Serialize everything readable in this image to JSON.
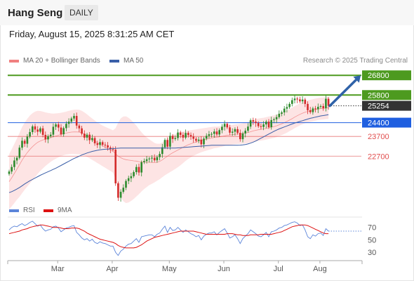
{
  "header": {
    "title": "Hang Seng",
    "period": "DAILY"
  },
  "datetime": "Friday, August 15, 2025 8:31:25 AM CET",
  "research": "Research © 2025 Trading Central",
  "colors": {
    "up": "#2c8a2c",
    "down": "#d42b2b",
    "ma50": "#3a5fa8",
    "bb": "#f08080",
    "resistance": "#4d9a1f",
    "support": "#e14d4d",
    "rsi": "#5b84d9",
    "rsi_ma": "#dd1111",
    "arrow": "#2f62a8",
    "current": "#333333",
    "ma50_level": "#1f5fe0"
  },
  "chart_data": [
    {
      "type": "candlestick",
      "legend": [
        {
          "name": "MA 20 + Bollinger Bands",
          "color": "#f08080"
        },
        {
          "name": "MA 50",
          "color": "#3a5fa8"
        }
      ],
      "x_labels": [
        "Mar",
        "Apr",
        "May",
        "Jun",
        "Jul",
        "Aug"
      ],
      "ylim": [
        20500,
        27200
      ],
      "levels": [
        {
          "value": 26800,
          "label": "26800",
          "kind": "resistance"
        },
        {
          "value": 25800,
          "label": "25800",
          "kind": "resistance"
        },
        {
          "value": 25254,
          "label": "25254",
          "kind": "current"
        },
        {
          "value": 24400,
          "label": "24400",
          "kind": "ma50"
        },
        {
          "value": 23700,
          "label": "23700",
          "kind": "support"
        },
        {
          "value": 22700,
          "label": "22700",
          "kind": "support"
        }
      ],
      "target_arrow": {
        "from": 25254,
        "to": 26800
      },
      "closes": [
        21920,
        22150,
        22480,
        22620,
        23130,
        23480,
        23330,
        23690,
        23920,
        24210,
        24050,
        23940,
        24110,
        23780,
        23550,
        23710,
        23790,
        24190,
        24310,
        24150,
        23810,
        24120,
        24340,
        24450,
        24610,
        24740,
        24250,
        24110,
        23840,
        23640,
        23790,
        23510,
        23620,
        23350,
        23270,
        23410,
        23280,
        23250,
        23140,
        23050,
        23030,
        21320,
        20590,
        20890,
        21100,
        21440,
        21580,
        21680,
        21890,
        22150,
        21870,
        22390,
        22450,
        22540,
        22580,
        22620,
        22490,
        22650,
        22810,
        23150,
        23520,
        23180,
        23730,
        23570,
        23620,
        23900,
        23780,
        23640,
        23880,
        23770,
        23690,
        23580,
        23480,
        23540,
        23300,
        23590,
        23730,
        23810,
        23830,
        23950,
        23800,
        24020,
        24190,
        24340,
        24160,
        23890,
        23940,
        24070,
        23880,
        23560,
        23850,
        23990,
        24200,
        24520,
        24450,
        24380,
        24220,
        24180,
        24310,
        24450,
        24170,
        24530,
        24570,
        24680,
        24850,
        24920,
        25110,
        25190,
        25350,
        25540,
        25620,
        25580,
        25480,
        25570,
        25350,
        25030,
        24930,
        25120,
        25080,
        25200,
        25240,
        25130,
        25610,
        25254
      ],
      "ma20": [
        21400,
        21600,
        21820,
        22040,
        22260,
        22500,
        22700,
        22880,
        23040,
        23180,
        23300,
        23400,
        23470,
        23520,
        23560,
        23600,
        23640,
        23680,
        23720,
        23760,
        23800,
        23840,
        23870,
        23900,
        23920,
        23930,
        23930,
        23920,
        23880,
        23820,
        23740,
        23650,
        23560,
        23470,
        23380,
        23300,
        23220,
        23150,
        23080,
        23010,
        22940,
        22820,
        22700,
        22620,
        22560,
        22520,
        22500,
        22480,
        22460,
        22450,
        22420,
        22410,
        22400,
        22390,
        22390,
        22380,
        22370,
        22390,
        22430,
        22510,
        22610,
        22700,
        22790,
        22870,
        22940,
        23010,
        23080,
        23150,
        23220,
        23280,
        23330,
        23380,
        23420,
        23460,
        23500,
        23530,
        23560,
        23590,
        23620,
        23650,
        23660,
        23680,
        23700,
        23730,
        23760,
        23770,
        23790,
        23810,
        23820,
        23830,
        23850,
        23870,
        23900,
        23940,
        23980,
        24010,
        24040,
        24060,
        24080,
        24110,
        24140,
        24170,
        24200,
        24240,
        24290,
        24340,
        24400,
        24460,
        24530,
        24600,
        24680,
        24750,
        24820,
        24880,
        24930,
        24970,
        25000,
        25030,
        25060,
        25090,
        25110,
        25120,
        25140,
        25150
      ],
      "ma50": [
        20850,
        20900,
        20960,
        21030,
        21110,
        21200,
        21290,
        21370,
        21450,
        21520,
        21590,
        21660,
        21730,
        21790,
        21850,
        21910,
        21970,
        22030,
        22090,
        22160,
        22230,
        22300,
        22370,
        22440,
        22510,
        22580,
        22640,
        22700,
        22760,
        22810,
        22860,
        22900,
        22940,
        22970,
        23000,
        23020,
        23040,
        23050,
        23060,
        23070,
        23080,
        23090,
        23100,
        23110,
        23110,
        23110,
        23110,
        23110,
        23110,
        23110,
        23110,
        23110,
        23110,
        23110,
        23110,
        23110,
        23110,
        23110,
        23110,
        23110,
        23110,
        23110,
        23110,
        23110,
        23110,
        23120,
        23130,
        23140,
        23150,
        23160,
        23170,
        23180,
        23190,
        23200,
        23210,
        23220,
        23230,
        23240,
        23250,
        23250,
        23250,
        23250,
        23250,
        23250,
        23250,
        23250,
        23250,
        23250,
        23250,
        23260,
        23270,
        23290,
        23320,
        23360,
        23410,
        23470,
        23540,
        23610,
        23680,
        23750,
        23820,
        23890,
        23960,
        24020,
        24080,
        24130,
        24180,
        24230,
        24280,
        24330,
        24380,
        24420,
        24460,
        24500,
        24540,
        24580,
        24620,
        24650,
        24680,
        24710,
        24740,
        24760,
        24780,
        24800
      ],
      "bb_width": [
        1400,
        1450,
        1500,
        1550,
        1620,
        1680,
        1700,
        1720,
        1720,
        1700,
        1660,
        1600,
        1520,
        1440,
        1360,
        1290,
        1230,
        1180,
        1150,
        1120,
        1100,
        1090,
        1090,
        1100,
        1110,
        1120,
        1130,
        1130,
        1120,
        1100,
        1080,
        1060,
        1050,
        1040,
        1030,
        1030,
        1030,
        1040,
        1050,
        1060,
        1070,
        1300,
        1700,
        2000,
        2150,
        2200,
        2150,
        2050,
        1930,
        1800,
        1650,
        1500,
        1370,
        1260,
        1160,
        1080,
        1000,
        940,
        900,
        880,
        880,
        890,
        900,
        900,
        890,
        870,
        840,
        800,
        760,
        720,
        690,
        660,
        640,
        620,
        600,
        590,
        580,
        570,
        560,
        550,
        540,
        530,
        520,
        510,
        500,
        500,
        500,
        500,
        500,
        510,
        520,
        530,
        540,
        550,
        560,
        570,
        570,
        570,
        570,
        570,
        570,
        570,
        570,
        570,
        570,
        570,
        570,
        570,
        560,
        560,
        560,
        560,
        560,
        560,
        560,
        560,
        560,
        560,
        560,
        560,
        560,
        560,
        560,
        560
      ]
    },
    {
      "type": "line",
      "legend": [
        {
          "name": "RSI",
          "color": "#5b84d9"
        },
        {
          "name": "9MA",
          "color": "#dd1111"
        }
      ],
      "y_ticks": [
        "70",
        "50",
        "30"
      ],
      "ylim": [
        20,
        90
      ],
      "values": [
        66,
        70,
        72,
        71,
        74,
        76,
        73,
        75,
        78,
        80,
        76,
        72,
        74,
        68,
        64,
        66,
        67,
        71,
        72,
        69,
        63,
        66,
        69,
        70,
        72,
        73,
        62,
        58,
        53,
        50,
        52,
        48,
        51,
        46,
        44,
        47,
        45,
        44,
        42,
        40,
        40,
        30,
        25,
        32,
        35,
        40,
        43,
        44,
        48,
        52,
        46,
        55,
        56,
        57,
        58,
        58,
        55,
        59,
        61,
        67,
        72,
        62,
        70,
        65,
        66,
        70,
        66,
        62,
        66,
        63,
        60,
        58,
        55,
        57,
        50,
        56,
        59,
        61,
        61,
        63,
        58,
        62,
        65,
        68,
        61,
        53,
        55,
        58,
        52,
        44,
        52,
        56,
        60,
        66,
        63,
        60,
        56,
        55,
        58,
        62,
        55,
        63,
        64,
        66,
        69,
        70,
        73,
        74,
        76,
        78,
        79,
        77,
        73,
        74,
        66,
        55,
        52,
        58,
        56,
        60,
        61,
        57,
        68,
        64
      ],
      "ma9": [
        60,
        61,
        62,
        63,
        64,
        66,
        67,
        68,
        70,
        71,
        72,
        73,
        74,
        74,
        73,
        72,
        71,
        70,
        70,
        70,
        69,
        68,
        68,
        68,
        69,
        69,
        69,
        68,
        66,
        64,
        61,
        59,
        57,
        55,
        53,
        51,
        50,
        49,
        48,
        47,
        46,
        44,
        41,
        39,
        38,
        37,
        37,
        37,
        37,
        38,
        40,
        42,
        45,
        48,
        50,
        52,
        54,
        55,
        56,
        57,
        58,
        59,
        60,
        61,
        62,
        63,
        64,
        64,
        64,
        64,
        64,
        64,
        63,
        62,
        61,
        60,
        59,
        59,
        59,
        59,
        59,
        59,
        59,
        59,
        60,
        60,
        60,
        59,
        58,
        58,
        57,
        57,
        57,
        58,
        58,
        58,
        58,
        59,
        59,
        59,
        59,
        59,
        60,
        61,
        62,
        63,
        65,
        67,
        69,
        71,
        72,
        73,
        74,
        74,
        74,
        73,
        71,
        69,
        67,
        65,
        63,
        61,
        60,
        60
      ]
    }
  ]
}
